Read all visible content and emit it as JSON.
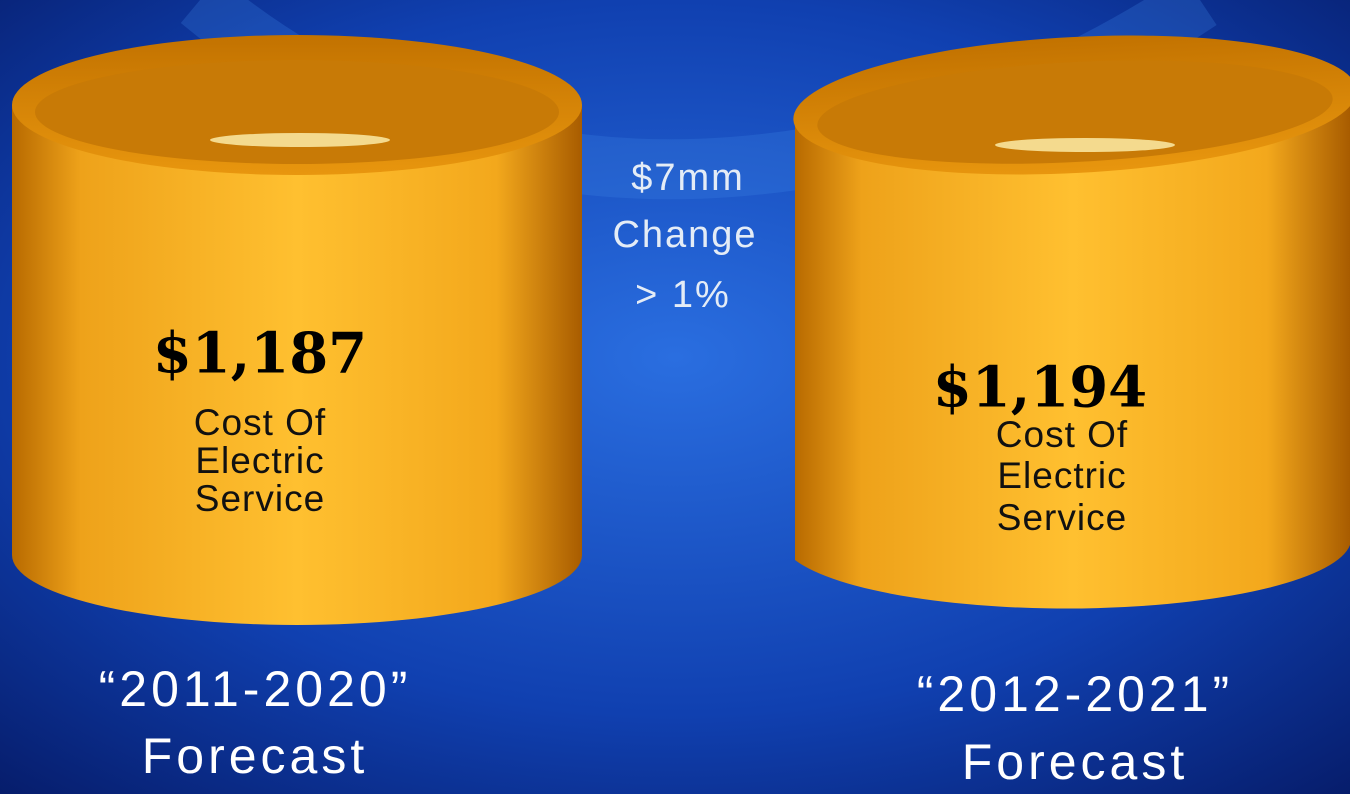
{
  "left": {
    "amount": "$1,187",
    "description": [
      "Cost Of",
      "Electric",
      "Service"
    ],
    "period": "“2011-2020”",
    "caption": "Forecast"
  },
  "change": {
    "lines": [
      "$7mm",
      "Change",
      "> 1%"
    ]
  },
  "right": {
    "amount": "$1,194",
    "description": [
      "Cost Of",
      "Electric",
      "Service"
    ],
    "period": "“2012-2021”",
    "caption": "Forecast"
  }
}
